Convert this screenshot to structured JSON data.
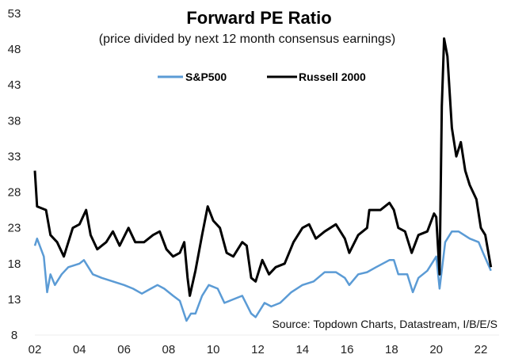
{
  "chart_data": {
    "type": "line",
    "title": "Forward PE Ratio",
    "subtitle": "(price divided by next 12 month consensus earnings)",
    "source": "Source: Topdown Charts, Datastream, I/B/E/S",
    "xlabel": "",
    "ylabel": "",
    "xlim": [
      2002,
      2022.6
    ],
    "ylim": [
      8,
      53
    ],
    "x_ticks": [
      "02",
      "04",
      "06",
      "08",
      "10",
      "12",
      "14",
      "16",
      "18",
      "20",
      "22"
    ],
    "y_ticks": [
      "53",
      "48",
      "43",
      "38",
      "33",
      "28",
      "23",
      "18",
      "13",
      "8"
    ],
    "grid": false,
    "legend_placement": "top-center",
    "series": [
      {
        "name": "S&P500",
        "color": "#5b9bd5",
        "x": [
          2002.0,
          2002.1,
          2002.4,
          2002.55,
          2002.7,
          2002.9,
          2003.2,
          2003.5,
          2004.0,
          2004.2,
          2004.6,
          2005.0,
          2005.5,
          2006.0,
          2006.4,
          2006.8,
          2007.2,
          2007.5,
          2007.8,
          2008.2,
          2008.5,
          2008.8,
          2009.0,
          2009.2,
          2009.5,
          2009.8,
          2010.2,
          2010.5,
          2010.9,
          2011.3,
          2011.7,
          2011.9,
          2012.3,
          2012.6,
          2013.0,
          2013.5,
          2014.0,
          2014.5,
          2015.0,
          2015.5,
          2015.9,
          2016.1,
          2016.5,
          2016.9,
          2017.3,
          2017.9,
          2018.1,
          2018.3,
          2018.7,
          2018.95,
          2019.2,
          2019.6,
          2020.0,
          2020.15,
          2020.4,
          2020.7,
          2021.0,
          2021.5,
          2021.9,
          2022.1,
          2022.45
        ],
        "y": [
          20.5,
          21.5,
          19,
          14,
          16.5,
          15,
          16.5,
          17.5,
          18,
          18.5,
          16.5,
          16,
          15.5,
          15,
          14.5,
          13.8,
          14.5,
          15,
          14.5,
          13.5,
          12.8,
          10,
          11,
          11,
          13.5,
          15,
          14.5,
          12.5,
          13,
          13.5,
          11,
          10.5,
          12.5,
          12,
          12.5,
          14,
          15,
          15.5,
          16.8,
          16.8,
          16,
          15,
          16.5,
          16.8,
          17.5,
          18.5,
          18.5,
          16.5,
          16.5,
          14,
          16,
          17,
          19,
          14.5,
          21,
          22.5,
          22.5,
          21.5,
          21,
          19.5,
          17
        ]
      },
      {
        "name": "Russell 2000",
        "color": "#000000",
        "x": [
          2002.0,
          2002.1,
          2002.5,
          2002.7,
          2003.0,
          2003.3,
          2003.7,
          2004.0,
          2004.3,
          2004.5,
          2004.8,
          2005.2,
          2005.5,
          2005.8,
          2006.2,
          2006.5,
          2006.9,
          2007.3,
          2007.6,
          2007.9,
          2008.2,
          2008.5,
          2008.7,
          2008.85,
          2008.95,
          2009.2,
          2009.5,
          2009.75,
          2010.0,
          2010.3,
          2010.6,
          2010.9,
          2011.3,
          2011.5,
          2011.7,
          2011.9,
          2012.2,
          2012.5,
          2012.8,
          2013.2,
          2013.6,
          2014.0,
          2014.3,
          2014.6,
          2015.0,
          2015.5,
          2015.9,
          2016.1,
          2016.5,
          2016.9,
          2017.0,
          2017.5,
          2017.9,
          2018.1,
          2018.3,
          2018.6,
          2018.9,
          2019.2,
          2019.6,
          2019.9,
          2020.0,
          2020.15,
          2020.25,
          2020.35,
          2020.5,
          2020.7,
          2020.9,
          2021.1,
          2021.3,
          2021.5,
          2021.8,
          2022.0,
          2022.2,
          2022.45
        ],
        "y": [
          31,
          26,
          25.5,
          22,
          21,
          19,
          23,
          23.5,
          25.5,
          22,
          20,
          21,
          22.5,
          20.5,
          23,
          21,
          21,
          22,
          22.5,
          20,
          19,
          19.5,
          21,
          16,
          13.5,
          17,
          22,
          26,
          24,
          23,
          19.5,
          19,
          21,
          20.5,
          16,
          15.5,
          18.5,
          16.5,
          17.5,
          18,
          21,
          23,
          23.5,
          21.5,
          22.5,
          23.5,
          21.5,
          19.5,
          22,
          23,
          25.5,
          25.5,
          26.5,
          25.5,
          23,
          22.5,
          19.5,
          22,
          22.5,
          25,
          24.5,
          16.5,
          40,
          49.5,
          47,
          37,
          33,
          35,
          31,
          29,
          27,
          23,
          22,
          17.5
        ]
      }
    ]
  }
}
